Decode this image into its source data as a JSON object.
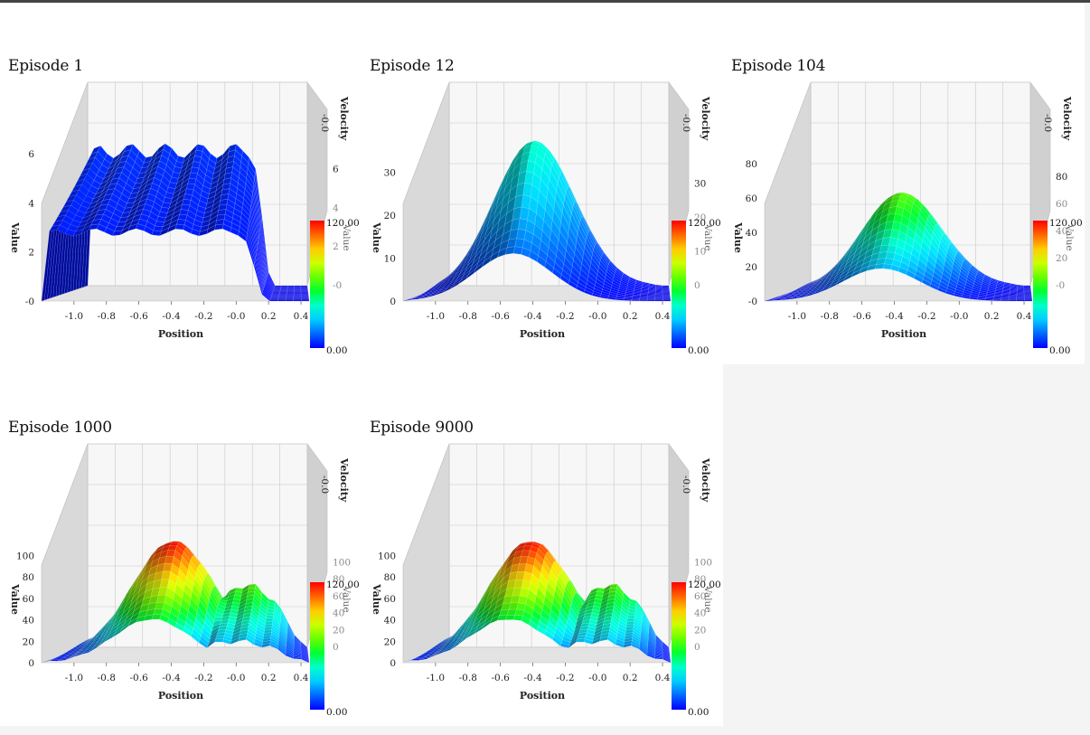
{
  "palette": {
    "rainbow": [
      "#0000ff",
      "#0066ff",
      "#00ccff",
      "#00ffcc",
      "#00ff33",
      "#66ff00",
      "#ccff00",
      "#ffcc00",
      "#ff6600",
      "#ff0000"
    ]
  },
  "chart_data": [
    {
      "type": "surface",
      "title": "Episode 1",
      "xlabel": "Position",
      "ylabel": "Velocity",
      "zlabel": "Value",
      "x_ticks": [
        "-1.0",
        "-0.8",
        "-0.6",
        "-0.4",
        "-0.2",
        "-0.0",
        "0.2",
        "0.4"
      ],
      "velocity_tick": "-0.0",
      "z_ticks_left": [
        "-0",
        "2",
        "4",
        "6"
      ],
      "z_ticks_right": [
        "-0",
        "2",
        "4",
        "6"
      ],
      "zlim": [
        0,
        7
      ],
      "peak_position": -0.6,
      "peak_value": 6.6,
      "colorbar": {
        "max": "120.00",
        "min": "0.00",
        "label": "Value"
      }
    },
    {
      "type": "surface",
      "title": "Episode 12",
      "xlabel": "Position",
      "ylabel": "Velocity",
      "zlabel": "Value",
      "x_ticks": [
        "-1.0",
        "-0.8",
        "-0.6",
        "-0.4",
        "-0.2",
        "-0.0",
        "0.2",
        "0.4"
      ],
      "velocity_tick": "-0.0",
      "z_ticks_left": [
        "0",
        "10",
        "20",
        "30"
      ],
      "z_ticks_right": [
        "0",
        "10",
        "20",
        "30"
      ],
      "zlim": [
        0,
        40
      ],
      "peak_position": -0.52,
      "peak_value": 40,
      "colorbar": {
        "max": "120.00",
        "min": "0.00",
        "label": "Value"
      }
    },
    {
      "type": "surface",
      "title": "Episode 104",
      "xlabel": "Position",
      "ylabel": "Velocity",
      "zlabel": "Value",
      "x_ticks": [
        "-1.0",
        "-0.8",
        "-0.6",
        "-0.4",
        "-0.2",
        "-0.0",
        "0.2",
        "0.4"
      ],
      "velocity_tick": "-0.0",
      "z_ticks_left": [
        "-0",
        "20",
        "40",
        "60",
        "80"
      ],
      "z_ticks_right": [
        "-0",
        "20",
        "40",
        "60",
        "80"
      ],
      "zlim": [
        0,
        100
      ],
      "peak_position": -0.48,
      "peak_value": 65,
      "colorbar": {
        "max": "120.00",
        "min": "0.00",
        "label": "Value"
      }
    },
    {
      "type": "surface",
      "title": "Episode 1000",
      "xlabel": "Position",
      "ylabel": "Velocity",
      "zlabel": "Value",
      "x_ticks": [
        "-1.0",
        "-0.8",
        "-0.6",
        "-0.4",
        "-0.2",
        "-0.0",
        "0.2",
        "0.4"
      ],
      "velocity_tick": "-0.0",
      "z_ticks_left": [
        "0",
        "20",
        "40",
        "60",
        "80",
        "100"
      ],
      "z_ticks_right": [
        "0",
        "20",
        "40",
        "60",
        "80",
        "100"
      ],
      "zlim": [
        0,
        160
      ],
      "peak_position": -0.52,
      "peak_value": 118,
      "colorbar": {
        "max": "120.00",
        "min": "0.00",
        "label": "Value"
      }
    },
    {
      "type": "surface",
      "title": "Episode 9000",
      "xlabel": "Position",
      "ylabel": "Velocity",
      "zlabel": "Value",
      "x_ticks": [
        "-1.0",
        "-0.8",
        "-0.6",
        "-0.4",
        "-0.2",
        "-0.0",
        "0.2",
        "0.4"
      ],
      "velocity_tick": "-0.0",
      "z_ticks_left": [
        "0",
        "20",
        "40",
        "60",
        "80",
        "100"
      ],
      "z_ticks_right": [
        "0",
        "20",
        "40",
        "60",
        "80",
        "100"
      ],
      "zlim": [
        0,
        160
      ],
      "peak_position": -0.55,
      "peak_value": 118,
      "colorbar": {
        "max": "120.00",
        "min": "0.00",
        "label": "Value"
      }
    }
  ]
}
